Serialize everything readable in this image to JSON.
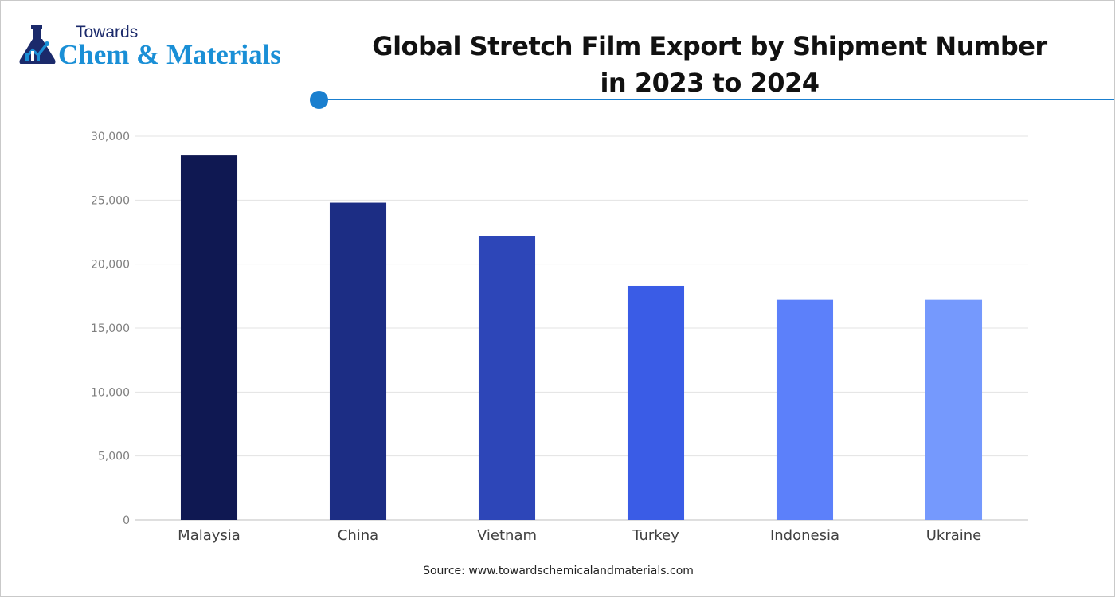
{
  "header": {
    "logo_towards": "Towards",
    "logo_main": "Chem & Materials",
    "title_line1": "Global Stretch Film Export by Shipment Number",
    "title_line2": "in 2023 to 2024"
  },
  "source": "Source: www.towardschemicalandmaterials.com",
  "colors": {
    "accent": "#1a7fcf",
    "logo_blue": "#1a8fd6",
    "logo_navy": "#1b2a6b"
  },
  "chart_data": {
    "type": "bar",
    "title": "Global Stretch Film Export by Shipment Number in 2023 to 2024",
    "xlabel": "",
    "ylabel": "",
    "categories": [
      "Malaysia",
      "China",
      "Vietnam",
      "Turkey",
      "Indonesia",
      "Ukraine"
    ],
    "values": [
      28500,
      24800,
      22200,
      18300,
      17200,
      17200
    ],
    "bar_colors": [
      "#0f1852",
      "#1c2d84",
      "#2d46b8",
      "#3a5ce6",
      "#5c80fa",
      "#7599fd"
    ],
    "ylim": [
      0,
      30000
    ],
    "yticks": [
      0,
      5000,
      10000,
      15000,
      20000,
      25000,
      30000
    ],
    "ytick_labels": [
      "0",
      "5,000",
      "10,000",
      "15,000",
      "20,000",
      "25,000",
      "30,000"
    ],
    "grid": true,
    "legend": "none"
  }
}
